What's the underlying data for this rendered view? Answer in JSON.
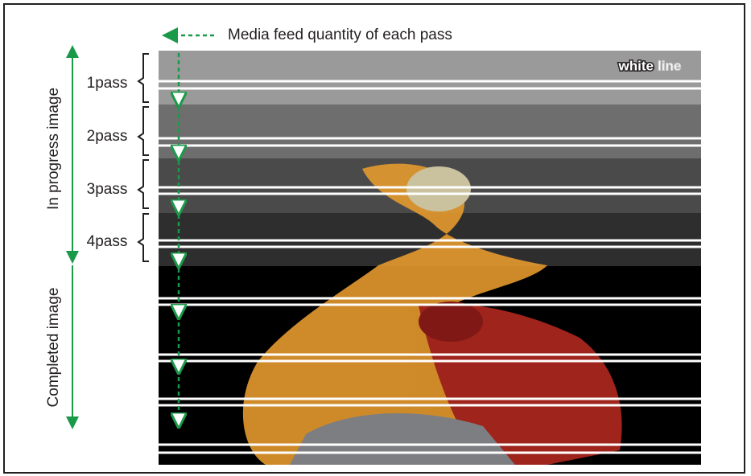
{
  "legend": "Media feed quantity of each pass",
  "groups": [
    "In progress image",
    "Completed image"
  ],
  "passes": [
    "1pass",
    "2pass",
    "3pass",
    "4pass"
  ],
  "badge": {
    "word1": "white",
    "word2": "line"
  }
}
